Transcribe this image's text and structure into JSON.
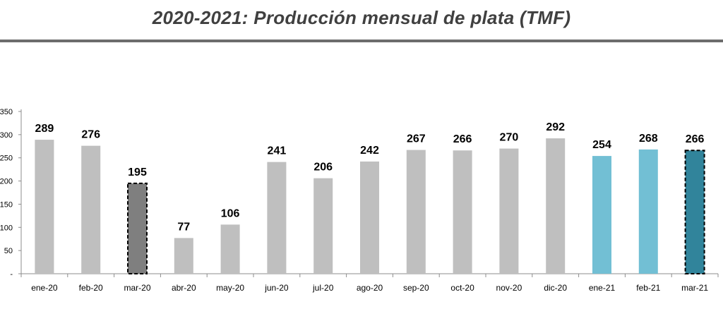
{
  "header": {
    "title": "2020-2021: Producción mensual de plata (TMF)"
  },
  "chart_data": {
    "type": "bar",
    "title": "2020-2021: Producción mensual de plata (TMF)",
    "xlabel": "",
    "ylabel": "",
    "ylim": [
      0,
      350
    ],
    "yticks": [
      0,
      50,
      100,
      150,
      200,
      250,
      300,
      350
    ],
    "ytick_labels": [
      "-",
      "50",
      "100",
      "150",
      "200",
      "250",
      "300",
      "350"
    ],
    "categories": [
      "ene-20",
      "feb-20",
      "mar-20",
      "abr-20",
      "may-20",
      "jun-20",
      "jul-20",
      "ago-20",
      "sep-20",
      "oct-20",
      "nov-20",
      "dic-20",
      "ene-21",
      "feb-21",
      "mar-21"
    ],
    "values": [
      289,
      276,
      195,
      77,
      106,
      241,
      206,
      242,
      267,
      266,
      270,
      292,
      254,
      268,
      266
    ],
    "bar_colors": [
      "#bfbfbf",
      "#bfbfbf",
      "#7f7f7f",
      "#bfbfbf",
      "#bfbfbf",
      "#bfbfbf",
      "#bfbfbf",
      "#bfbfbf",
      "#bfbfbf",
      "#bfbfbf",
      "#bfbfbf",
      "#bfbfbf",
      "#72bfd4",
      "#72bfd4",
      "#31849b"
    ],
    "highlighted_dashed": [
      "mar-20",
      "mar-21"
    ],
    "grid": false,
    "data_labels": true
  }
}
